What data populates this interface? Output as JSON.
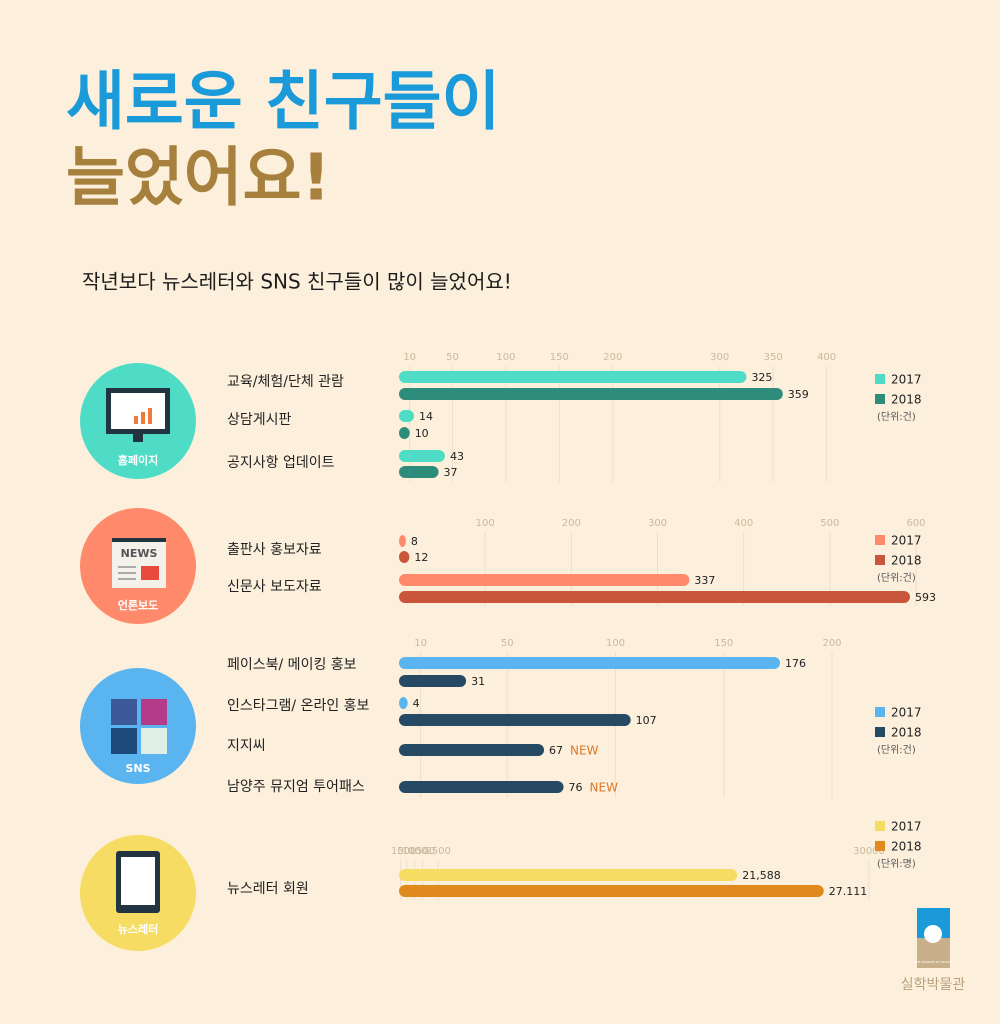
{
  "header": {
    "title_line1": "새로운 친구들이",
    "title_line2": "늘었어요!",
    "subtitle": "작년보다 뉴스레터와 SNS 친구들이 많이 늘었어요!"
  },
  "chart_data": [
    {
      "type": "bar",
      "section": "홈페이지",
      "categories": [
        "교육/체험/단체 관람",
        "상담게시판",
        "공지사항 업데이트"
      ],
      "series": [
        {
          "name": "2017",
          "color": "#4fdcc6",
          "values": [
            325,
            14,
            43
          ]
        },
        {
          "name": "2018",
          "color": "#2e8c7a",
          "values": [
            359,
            10,
            37
          ]
        }
      ],
      "xlim": [
        0,
        420
      ],
      "xticks": [
        10,
        50,
        100,
        150,
        200,
        300,
        350,
        400
      ],
      "unit": "(단위:건)",
      "grid": true
    },
    {
      "type": "bar",
      "section": "언론보도",
      "icon_text": "NEWS",
      "categories": [
        "출판사 홍보자료",
        "신문사 보도자료"
      ],
      "series": [
        {
          "name": "2017",
          "color": "#ff8a6b",
          "values": [
            8,
            337
          ]
        },
        {
          "name": "2018",
          "color": "#c9553a",
          "values": [
            12,
            593
          ]
        }
      ],
      "xlim": [
        0,
        600
      ],
      "xticks": [
        100,
        200,
        300,
        400,
        500,
        600
      ],
      "unit": "(단위:건)",
      "grid": true
    },
    {
      "type": "bar",
      "section": "SNS",
      "categories": [
        "페이스북/ 메이킹 홍보",
        "인스타그램/ 온라인 홍보",
        "지지씨",
        "남양주 뮤지엄 투어패스"
      ],
      "series": [
        {
          "name": "2017",
          "color": "#5ab4ef",
          "values": [
            176,
            4,
            null,
            null
          ]
        },
        {
          "name": "2018",
          "color": "#264a63",
          "values": [
            31,
            107,
            67,
            76
          ],
          "tags": [
            null,
            null,
            "NEW",
            "NEW"
          ]
        }
      ],
      "xlim": [
        0,
        200
      ],
      "xticks": [
        10,
        50,
        100,
        150,
        200
      ],
      "unit": "(단위:건)",
      "grid": true
    },
    {
      "type": "bar",
      "section": "뉴스레터",
      "categories": [
        "뉴스레터 회원"
      ],
      "series": [
        {
          "name": "2017",
          "color": "#f7dc64",
          "values": [
            21588
          ],
          "value_labels": [
            "21,588"
          ]
        },
        {
          "name": "2018",
          "color": "#e08a1e",
          "values": [
            27111
          ],
          "value_labels": [
            "27.111"
          ]
        }
      ],
      "xlim": [
        0,
        30000
      ],
      "xticks": [
        100,
        500,
        1000,
        1500,
        2500,
        30000
      ],
      "unit": "(단위:명)",
      "grid": true
    }
  ],
  "logo": {
    "small": "THE MUSEUM OF SILHAK",
    "name": "실학박물관"
  }
}
